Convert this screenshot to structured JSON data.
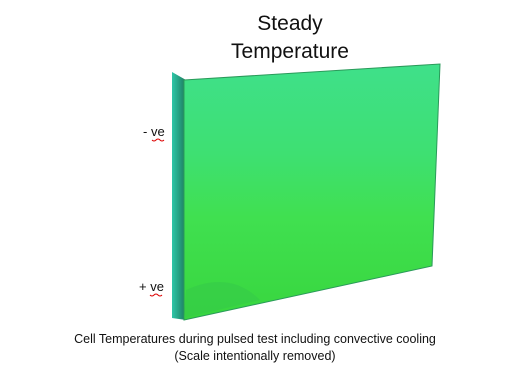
{
  "title": {
    "lines": [
      "Steady",
      "Temperature"
    ]
  },
  "labels": {
    "top": "- ve",
    "bottom": "+ ve"
  },
  "caption": {
    "lines": [
      "Cell Temperatures during  pulsed test including convective cooling",
      "(Scale intentionally removed)"
    ]
  }
}
